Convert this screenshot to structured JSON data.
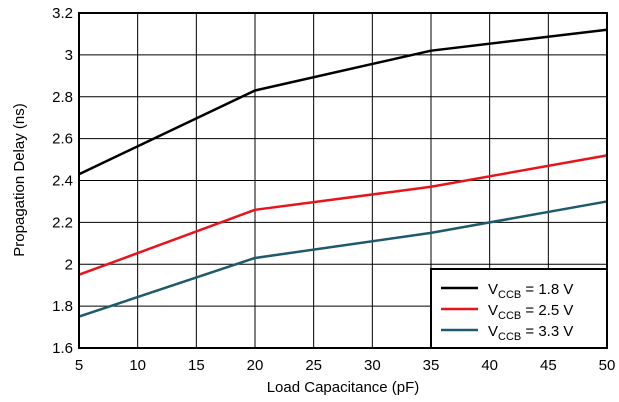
{
  "chart_data": {
    "type": "line",
    "title": "",
    "xlabel": "Load Capacitance (pF)",
    "ylabel": "Propagation Delay (ns)",
    "xlim": [
      5,
      50
    ],
    "ylim": [
      1.6,
      3.2
    ],
    "grid": true,
    "legend_position": "bottom-right",
    "x_ticks": [
      5,
      10,
      15,
      20,
      25,
      30,
      35,
      40,
      45,
      50
    ],
    "y_ticks": [
      1.6,
      1.8,
      2,
      2.2,
      2.4,
      2.6,
      2.8,
      3,
      3.2
    ],
    "x_tick_labels": [
      "5",
      "10",
      "15",
      "20",
      "25",
      "30",
      "35",
      "40",
      "45",
      "50"
    ],
    "y_tick_labels": [
      "1.6",
      "1.8",
      "2",
      "2.2",
      "2.4",
      "2.6",
      "2.8",
      "3",
      "3.2"
    ],
    "series": [
      {
        "name": "VCCB = 1.8 V",
        "legend_main": "V",
        "legend_sub": "CCB",
        "legend_rest": " = 1.8 V",
        "color": "#000000",
        "x": [
          5,
          20,
          35,
          50
        ],
        "y": [
          2.43,
          2.83,
          3.02,
          3.12
        ]
      },
      {
        "name": "VCCB = 2.5 V",
        "legend_main": "V",
        "legend_sub": "CCB",
        "legend_rest": " = 2.5 V",
        "color": "#e8141c",
        "x": [
          5,
          20,
          35,
          50
        ],
        "y": [
          1.95,
          2.26,
          2.37,
          2.52
        ]
      },
      {
        "name": "VCCB = 3.3 V",
        "legend_main": "V",
        "legend_sub": "CCB",
        "legend_rest": " = 3.3 V",
        "color": "#1e5a6b",
        "x": [
          5,
          20,
          35,
          50
        ],
        "y": [
          1.75,
          2.03,
          2.15,
          2.3
        ]
      }
    ]
  }
}
